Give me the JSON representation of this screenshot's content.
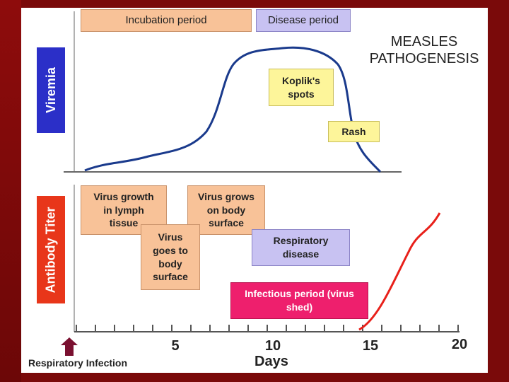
{
  "title": "MEASLES\nPATHOGENESIS",
  "phases": {
    "incubation": "Incubation period",
    "disease": "Disease period"
  },
  "y_labels": {
    "top": "Viremia",
    "bottom": "Antibody Titer"
  },
  "events": {
    "koplik": "Koplik's\nspots",
    "rash": "Rash",
    "virus_growth": "Virus growth\nin lymph\ntissue",
    "virus_body": "Virus\ngoes to\nbody\nsurface",
    "virus_grows_surface": "Virus grows\non body\nsurface",
    "respiratory_disease": "Respiratory\ndisease",
    "infectious_period": "Infectious period (virus\nshed)"
  },
  "x_axis": {
    "label": "Days",
    "ticks": [
      "5",
      "10",
      "15",
      "20"
    ],
    "start_label": "Respiratory Infection"
  },
  "colors": {
    "viremia_curve": "#1a3a8c",
    "antibody_curve": "#e8201a",
    "viremia_label_bg": "#2b2fc8",
    "antibody_label_bg": "#e8361a",
    "arrow": "#7a1030"
  }
}
